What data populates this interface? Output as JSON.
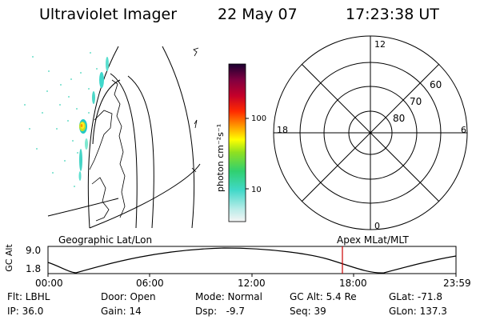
{
  "header": {
    "instrument": "Ultraviolet Imager",
    "date": "22 May 07",
    "time": "17:23:38 UT"
  },
  "colorbar": {
    "label": "photon cm⁻²s⁻¹",
    "ticks": [
      "100",
      "10"
    ]
  },
  "polar_plot": {
    "mlt_labels": {
      "top": "12",
      "left": "18",
      "right": "6",
      "bottom": "0"
    },
    "lat_labels": [
      "60",
      "70",
      "80"
    ]
  },
  "orbit_panel": {
    "ylabel": "GC Alt",
    "yticks": [
      "9.0",
      "1.8"
    ],
    "left_title": "Geographic Lat/Lon",
    "right_title": "Apex MLat/MLT",
    "time_ticks": [
      "00:00",
      "06:00",
      "12:00",
      "18:00",
      "23:59"
    ],
    "marker_time": "17:23:38",
    "marker_color": "#cc0000"
  },
  "info": {
    "filter": "Flt: LBHL",
    "door": "Door: Open",
    "mode": "Mode: Normal",
    "gc_alt": "GC Alt: 5.4 Re",
    "glat": "GLat: -71.8",
    "ip": "IP: 36.0",
    "gain": "Gain: 14",
    "dsp": "Dsp:   -9.7",
    "seq": "Seq: 39",
    "glon": "GLon: 137.3"
  }
}
